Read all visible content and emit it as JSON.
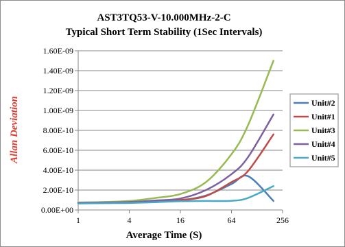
{
  "chart_data": {
    "type": "line",
    "title": "AST3TQ53-V-10.000MHz-2-C",
    "subtitle": "Typical Short Term Stability (1Sec Intervals)",
    "xlabel": "Average Time (S)",
    "ylabel": "Allan Deviation",
    "x_scale": "log2",
    "xlim": [
      1,
      256
    ],
    "ylim": [
      0,
      1.6e-09
    ],
    "x_ticks": [
      1,
      4,
      16,
      64,
      256
    ],
    "x_tick_labels": [
      "1",
      "4",
      "16",
      "64",
      "256"
    ],
    "y_ticks": [
      0,
      2e-10,
      4e-10,
      6e-10,
      8e-10,
      1e-09,
      1.2e-09,
      1.4e-09,
      1.6e-09
    ],
    "y_tick_labels": [
      "0.00E+00",
      "2.00E-10",
      "4.00E-10",
      "6.00E-10",
      "8.00E-10",
      "1.00E-09",
      "1.20E-09",
      "1.40E-09",
      "1.60E-09"
    ],
    "grid": true,
    "legend_position": "right",
    "x": [
      1,
      2,
      4,
      8,
      16,
      32,
      64,
      100,
      200
    ],
    "series": [
      {
        "name": "Unit#2",
        "color": "#4a7ebb",
        "values": [
          6.8e-11,
          7e-11,
          7.3e-11,
          8e-11,
          9.5e-11,
          1.45e-10,
          2.6e-10,
          3.4e-10,
          9e-11
        ]
      },
      {
        "name": "Unit#1",
        "color": "#be4b48",
        "values": [
          7e-11,
          7.2e-11,
          7.5e-11,
          8.5e-11,
          1e-10,
          1.4e-10,
          2.8e-10,
          3.9e-10,
          7.6e-10
        ]
      },
      {
        "name": "Unit#3",
        "color": "#98b954",
        "values": [
          7.5e-11,
          8e-11,
          9e-11,
          1.2e-10,
          1.6e-10,
          2.8e-10,
          5.6e-10,
          8.5e-10,
          1.5e-09
        ]
      },
      {
        "name": "Unit#4",
        "color": "#7d60a0",
        "values": [
          7.2e-11,
          7.5e-11,
          8e-11,
          9.5e-11,
          1.15e-10,
          2e-10,
          3.6e-10,
          5.3e-10,
          9.6e-10
        ]
      },
      {
        "name": "Unit#5",
        "color": "#46aac5",
        "values": [
          6.5e-11,
          6.8e-11,
          7e-11,
          7.8e-11,
          8.8e-11,
          9e-11,
          9.2e-11,
          1.2e-10,
          2.4e-10
        ]
      }
    ]
  }
}
